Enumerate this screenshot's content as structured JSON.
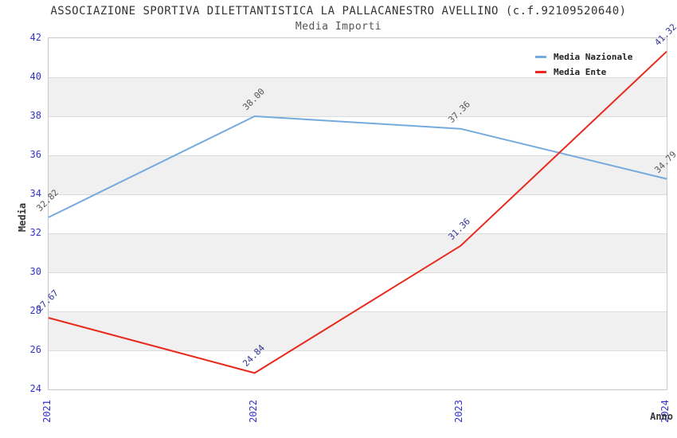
{
  "title": "ASSOCIAZIONE SPORTIVA DILETTANTISTICA LA PALLACANESTRO AVELLINO (c.f.92109520640)",
  "subtitle": "Media Importi",
  "chart_data": {
    "type": "line",
    "categories": [
      "2021",
      "2022",
      "2023",
      "2024"
    ],
    "series": [
      {
        "name": "Media Nazionale",
        "color": "#74aade",
        "label_color": "#555555",
        "values": [
          32.82,
          38.0,
          37.36,
          34.79
        ]
      },
      {
        "name": "Media Ente",
        "color": "#e8291c",
        "label_color": "#333399",
        "values": [
          27.67,
          24.84,
          31.36,
          41.32
        ]
      }
    ],
    "xlabel": "Anno",
    "ylabel": "Media",
    "ylim": [
      24,
      42
    ],
    "ytick_step": 2,
    "yticks": [
      42,
      40,
      38,
      36,
      34,
      32,
      30,
      28,
      26,
      24
    ],
    "tick_color": "#3333cc",
    "band_color": "#f0f0f0",
    "grid_color": "#dcdcdc",
    "grid": true,
    "legend_position": "top-right",
    "value_label_decimals": 2
  }
}
